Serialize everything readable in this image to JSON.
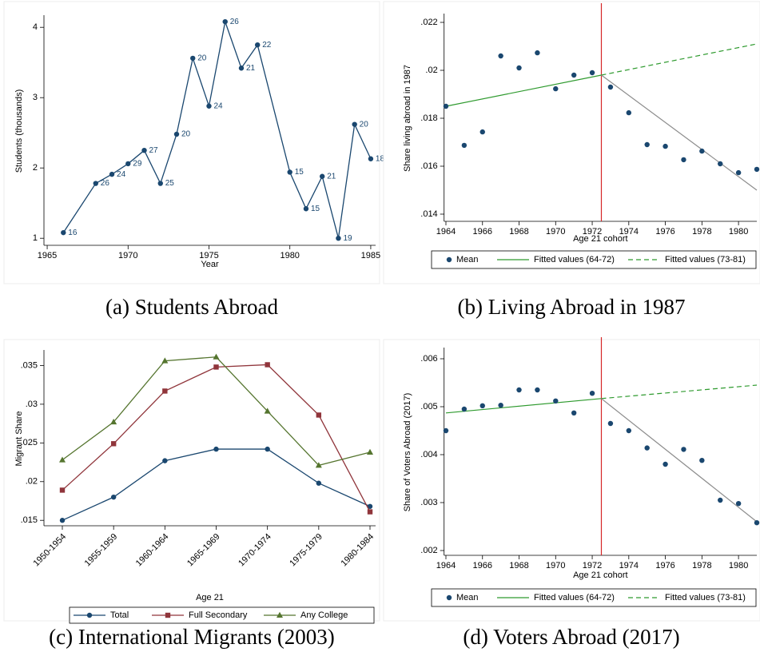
{
  "chart_data": [
    {
      "type": "line",
      "caption": "(a) Students Abroad",
      "xlabel": "Year",
      "ylabel": "Students (thousands)",
      "x": [
        1966,
        1968,
        1969,
        1970,
        1971,
        1972,
        1973,
        1974,
        1975,
        1976,
        1977,
        1978,
        1980,
        1981,
        1982,
        1983,
        1984,
        1985
      ],
      "values": [
        1.08,
        1.78,
        1.91,
        2.06,
        2.25,
        1.78,
        2.48,
        3.56,
        2.88,
        4.08,
        3.42,
        3.75,
        1.94,
        1.42,
        1.88,
        1.0,
        2.62,
        2.13
      ],
      "labels": [
        16,
        26,
        24,
        29,
        27,
        25,
        20,
        20,
        24,
        26,
        21,
        22,
        15,
        15,
        21,
        19,
        20,
        18
      ],
      "color": "#1a476f",
      "xlim": [
        1964.8,
        1985.3
      ],
      "ylim": [
        0.9,
        4.15
      ],
      "xticks": [
        1965,
        1970,
        1975,
        1980,
        1985
      ],
      "yticks": [
        1,
        2,
        3,
        4
      ]
    },
    {
      "type": "scatter",
      "caption": "(b) Living Abroad in 1987",
      "xlabel": "Age 21 cohort",
      "ylabel": "Share living abroad in 1987",
      "xlim": [
        1963.9,
        1981
      ],
      "ylim": [
        0.0137,
        0.0223
      ],
      "xticks": [
        1964,
        1966,
        1968,
        1970,
        1972,
        1974,
        1976,
        1978,
        1980
      ],
      "yticks": [
        {
          "value": 0.014,
          "label": ".014"
        },
        {
          "value": 0.016,
          "label": ".016"
        },
        {
          "value": 0.018,
          "label": ".018"
        },
        {
          "value": 0.02,
          "label": ".02"
        },
        {
          "value": 0.022,
          "label": ".022"
        }
      ],
      "cutoff": 1972.5,
      "cutoff_color": "#d62728",
      "series": [
        {
          "name": "Fitted values (64-72)",
          "kind": "line",
          "color": "#2e9a2e",
          "x": [
            1964,
            1972.5
          ],
          "values": [
            0.0185,
            0.0198
          ]
        },
        {
          "name": "Fitted values (73-81)",
          "kind": "dashed",
          "color": "#2e9a2e",
          "x": [
            1972.5,
            1981
          ],
          "values": [
            0.0198,
            0.0211
          ]
        },
        {
          "kind": "line",
          "color": "#8c8c8c",
          "x": [
            1972.5,
            1981
          ],
          "values": [
            0.0198,
            0.015
          ]
        },
        {
          "name": "Mean",
          "kind": "marker",
          "color": "#1a476f",
          "x": [
            1964,
            1965,
            1966,
            1967,
            1968,
            1969,
            1970,
            1971,
            1972,
            1973,
            1974,
            1975,
            1976,
            1977,
            1978,
            1979,
            1980,
            1981
          ],
          "values": [
            0.0185,
            0.01687,
            0.01743,
            0.0206,
            0.0201,
            0.02073,
            0.01923,
            0.0198,
            0.0199,
            0.0193,
            0.01823,
            0.0169,
            0.01683,
            0.01627,
            0.01663,
            0.0161,
            0.01573,
            0.01587
          ]
        }
      ],
      "legend_order": [
        3,
        0,
        1
      ]
    },
    {
      "type": "line",
      "caption": "(c) International Migrants (2003)",
      "xlabel": "Age 21",
      "ylabel": "Migrant Share",
      "categories": [
        "1950-1954",
        "1955-1959",
        "1960-1964",
        "1965-1969",
        "1970-1974",
        "1975-1979",
        "1980-1984"
      ],
      "ylim": [
        0.0143,
        0.0368
      ],
      "yticks": [
        {
          "value": 0.015,
          "label": ".015"
        },
        {
          "value": 0.02,
          "label": ".02"
        },
        {
          "value": 0.025,
          "label": ".025"
        },
        {
          "value": 0.03,
          "label": ".03"
        },
        {
          "value": 0.035,
          "label": ".035"
        }
      ],
      "series": [
        {
          "name": "Total",
          "marker": "circle",
          "color": "#1a476f",
          "values": [
            0.015,
            0.018,
            0.0227,
            0.0242,
            0.0242,
            0.0198,
            0.0168
          ]
        },
        {
          "name": "Full Secondary",
          "marker": "square",
          "color": "#90353b",
          "values": [
            0.0189,
            0.0249,
            0.0317,
            0.0348,
            0.0351,
            0.0286,
            0.0161
          ]
        },
        {
          "name": "Any College",
          "marker": "triangle",
          "color": "#55752f",
          "values": [
            0.0228,
            0.0277,
            0.0356,
            0.0361,
            0.0291,
            0.0221,
            0.0238
          ]
        }
      ]
    },
    {
      "type": "scatter",
      "caption": "(d) Voters Abroad (2017)",
      "xlabel": "Age 21 cohort",
      "ylabel": "Share of Voters Abroad (2017)",
      "xlim": [
        1963.9,
        1981
      ],
      "ylim": [
        0.0019,
        0.0062
      ],
      "xticks": [
        1964,
        1966,
        1968,
        1970,
        1972,
        1974,
        1976,
        1978,
        1980
      ],
      "yticks": [
        {
          "value": 0.002,
          "label": ".002"
        },
        {
          "value": 0.003,
          "label": ".003"
        },
        {
          "value": 0.004,
          "label": ".004"
        },
        {
          "value": 0.005,
          "label": ".005"
        },
        {
          "value": 0.006,
          "label": ".006"
        }
      ],
      "cutoff": 1972.5,
      "cutoff_color": "#d62728",
      "series": [
        {
          "name": "Fitted values (64-72)",
          "kind": "line",
          "color": "#2e9a2e",
          "x": [
            1964,
            1972.5
          ],
          "values": [
            0.00487,
            0.00517
          ]
        },
        {
          "name": "Fitted values (73-81)",
          "kind": "dashed",
          "color": "#2e9a2e",
          "x": [
            1972.5,
            1981
          ],
          "values": [
            0.00517,
            0.00545
          ]
        },
        {
          "kind": "line",
          "color": "#8c8c8c",
          "x": [
            1972.5,
            1981
          ],
          "values": [
            0.00517,
            0.0026
          ]
        },
        {
          "name": "Mean",
          "kind": "marker",
          "color": "#1a476f",
          "x": [
            1964,
            1965,
            1966,
            1967,
            1968,
            1969,
            1970,
            1971,
            1972,
            1973,
            1974,
            1975,
            1976,
            1977,
            1978,
            1979,
            1980,
            1981
          ],
          "values": [
            0.0045,
            0.00495,
            0.00502,
            0.00503,
            0.00535,
            0.00535,
            0.00512,
            0.00487,
            0.00528,
            0.00465,
            0.0045,
            0.00414,
            0.0038,
            0.00411,
            0.00388,
            0.00305,
            0.00298,
            0.00258
          ]
        }
      ],
      "legend_order": [
        3,
        0,
        1
      ]
    }
  ]
}
